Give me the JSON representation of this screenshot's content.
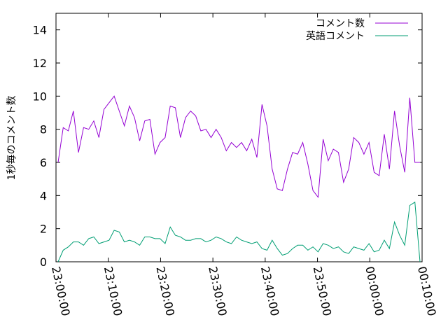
{
  "chart_data": {
    "type": "line",
    "title": "",
    "xlabel": "",
    "ylabel": "1秒毎のコメント数",
    "ylim": [
      0,
      15
    ],
    "yticks": [
      0,
      2,
      4,
      6,
      8,
      10,
      12,
      14
    ],
    "xlim": [
      "23:00:00",
      "00:10:00"
    ],
    "xticks": [
      "23:00:00",
      "23:10:00",
      "23:20:00",
      "23:30:00",
      "23:40:00",
      "23:50:00",
      "00:00:00",
      "00:10:00"
    ],
    "grid": false,
    "legend_position": "top-right",
    "series": [
      {
        "name": "コメント数",
        "color": "#9400d3",
        "values": [
          6.0,
          8.1,
          7.9,
          9.1,
          6.6,
          8.1,
          8.0,
          8.5,
          7.5,
          9.2,
          9.6,
          10.0,
          9.1,
          8.2,
          9.4,
          8.7,
          7.3,
          8.5,
          8.6,
          6.5,
          7.2,
          7.5,
          9.4,
          9.3,
          7.5,
          8.7,
          9.1,
          8.8,
          7.9,
          8.0,
          7.5,
          8.0,
          7.5,
          6.7,
          7.2,
          6.9,
          7.2,
          6.7,
          7.4,
          6.3,
          9.5,
          8.2,
          5.6,
          4.4,
          4.3,
          5.6,
          6.6,
          6.5,
          7.2,
          5.9,
          4.3,
          3.9,
          7.4,
          6.1,
          6.8,
          6.6,
          4.8,
          5.6,
          7.5,
          7.2,
          6.5,
          7.2,
          5.4,
          5.2,
          7.7,
          5.6,
          9.1,
          7.0,
          5.4,
          9.9,
          6.0,
          6.0
        ]
      },
      {
        "name": "英語コメント",
        "color": "#009e73",
        "values": [
          0.0,
          0.7,
          0.9,
          1.2,
          1.2,
          1.0,
          1.4,
          1.5,
          1.1,
          1.2,
          1.3,
          1.9,
          1.8,
          1.2,
          1.3,
          1.2,
          1.0,
          1.5,
          1.5,
          1.4,
          1.4,
          1.1,
          2.1,
          1.6,
          1.5,
          1.3,
          1.3,
          1.4,
          1.4,
          1.2,
          1.3,
          1.5,
          1.4,
          1.2,
          1.1,
          1.5,
          1.3,
          1.2,
          1.1,
          1.2,
          0.8,
          0.7,
          1.3,
          0.8,
          0.4,
          0.5,
          0.8,
          1.0,
          1.0,
          0.7,
          0.9,
          0.6,
          1.1,
          1.0,
          0.8,
          0.9,
          0.6,
          0.5,
          0.9,
          0.8,
          0.7,
          1.1,
          0.6,
          0.7,
          1.3,
          0.8,
          2.4,
          1.6,
          1.0,
          3.4,
          3.6,
          0.0
        ]
      }
    ]
  }
}
